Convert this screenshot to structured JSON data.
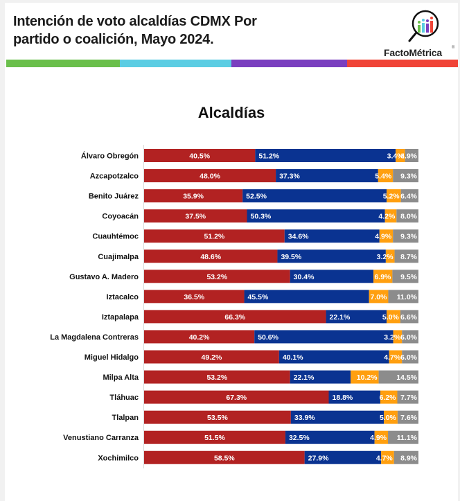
{
  "header": {
    "title_line1": "Intención de voto alcaldías CDMX Por",
    "title_line2": "partido o coalición, Mayo 2024.",
    "logo_text": "FactoMétrica",
    "logo_registered": "®",
    "logo_icon": "magnifier-bar-chart-icon",
    "stripe_colors": [
      "#6abf4b",
      "#5bcde3",
      "#7a3fbf",
      "#f04437"
    ]
  },
  "chart_data": {
    "type": "bar",
    "orientation": "horizontal",
    "stacked": true,
    "title": "Alcaldías",
    "xlabel": "",
    "ylabel": "",
    "xlim": [
      0,
      100
    ],
    "grid": false,
    "legend": "none",
    "categories": [
      "Álvaro Obregón",
      "Azcapotzalco",
      "Benito Juárez",
      "Coyoacán",
      "Cuauhtémoc",
      "Cuajimalpa",
      "Gustavo A. Madero",
      "Iztacalco",
      "Iztapalapa",
      "La Magdalena Contreras",
      "Miguel Hidalgo",
      "Milpa Alta",
      "Tláhuac",
      "Tlalpan",
      "Venustiano Carranza",
      "Xochimilco"
    ],
    "series": [
      {
        "name": "red",
        "color": "#b22222",
        "values": [
          40.5,
          48.0,
          35.9,
          37.5,
          51.2,
          48.6,
          53.2,
          36.5,
          66.3,
          40.2,
          49.2,
          53.2,
          67.3,
          53.5,
          51.5,
          58.5
        ]
      },
      {
        "name": "blue",
        "color": "#0a3391",
        "values": [
          51.2,
          37.3,
          52.5,
          50.3,
          34.6,
          39.5,
          30.4,
          45.5,
          22.1,
          50.6,
          40.1,
          22.1,
          18.8,
          33.9,
          32.5,
          27.9
        ]
      },
      {
        "name": "orange",
        "color": "#ff9f0f",
        "values": [
          3.4,
          5.4,
          5.2,
          4.2,
          4.9,
          3.2,
          6.9,
          7.0,
          5.0,
          3.2,
          4.7,
          10.2,
          6.2,
          5.0,
          4.9,
          4.7
        ]
      },
      {
        "name": "gray",
        "color": "#8c8c8c",
        "values": [
          4.9,
          9.3,
          6.4,
          8.0,
          9.3,
          8.7,
          9.5,
          11.0,
          6.6,
          6.0,
          6.0,
          14.5,
          7.7,
          7.6,
          11.1,
          8.9
        ]
      }
    ]
  }
}
